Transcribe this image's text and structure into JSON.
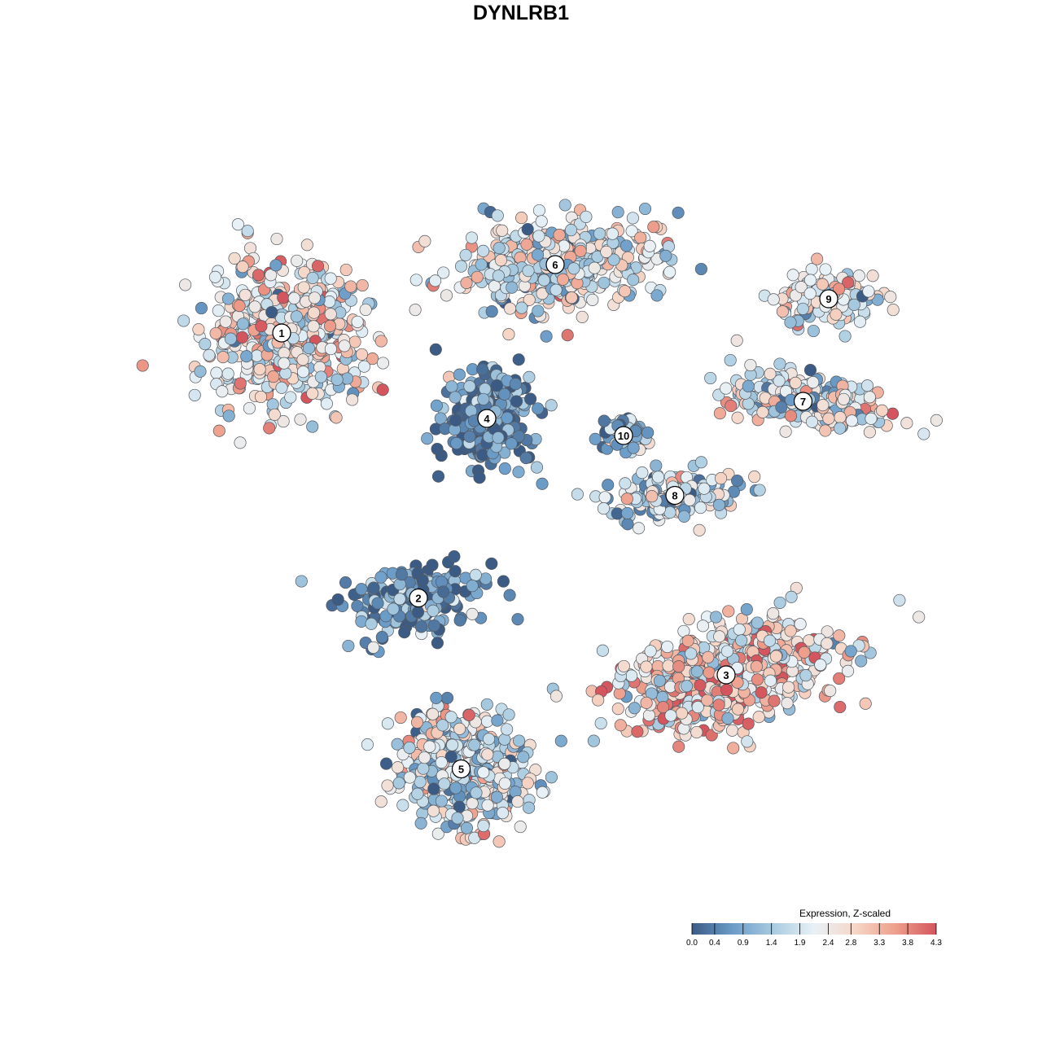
{
  "chart_data": {
    "type": "scatter",
    "title": "DYNLRB1",
    "xlabel": "",
    "ylabel": "",
    "grid": false,
    "legend_placement": "bottom-right",
    "color_scale": {
      "title": "Expression, Z-scaled",
      "min": 0.0,
      "max": 4.3,
      "ticks": [
        0.0,
        0.4,
        0.9,
        1.4,
        1.9,
        2.4,
        2.8,
        3.3,
        3.8,
        4.3
      ],
      "tick_labels": [
        "0.0",
        "0.4",
        "0.9",
        "1.4",
        "1.9",
        "2.4",
        "2.8",
        "3.3",
        "3.8",
        "4.3"
      ],
      "colors": [
        "#3b5b85",
        "#6b9cc8",
        "#a9cbe0",
        "#e8f1f6",
        "#f6d7c8",
        "#ee9f8c",
        "#d4555d"
      ]
    },
    "clusters": [
      {
        "label": "1",
        "x": -28,
        "y": 22,
        "mean_expression": 2.4
      },
      {
        "label": "2",
        "x": -12,
        "y": -9,
        "mean_expression": 0.6
      },
      {
        "label": "3",
        "x": 24,
        "y": -18,
        "mean_expression": 2.7
      },
      {
        "label": "4",
        "x": -4,
        "y": 12,
        "mean_expression": 0.5
      },
      {
        "label": "5",
        "x": -7,
        "y": -29,
        "mean_expression": 2.0
      },
      {
        "label": "6",
        "x": 4,
        "y": 30,
        "mean_expression": 2.1
      },
      {
        "label": "7",
        "x": 33,
        "y": 14,
        "mean_expression": 2.2
      },
      {
        "label": "8",
        "x": 18,
        "y": 3,
        "mean_expression": 1.6
      },
      {
        "label": "9",
        "x": 36,
        "y": 26,
        "mean_expression": 2.3
      },
      {
        "label": "10",
        "x": 12,
        "y": 10,
        "mean_expression": 1.1
      }
    ]
  }
}
